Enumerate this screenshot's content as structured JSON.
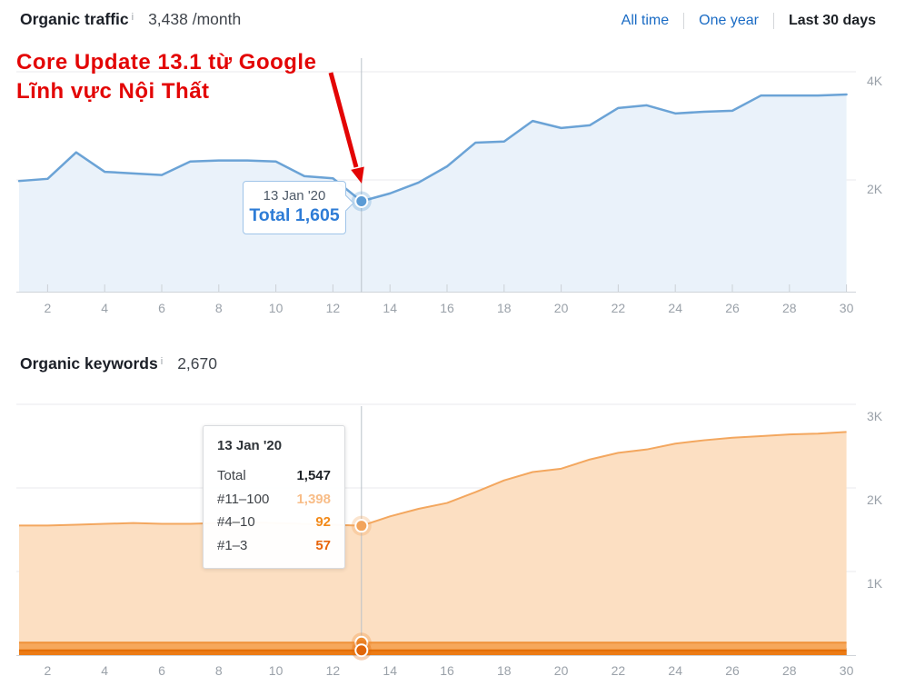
{
  "organic_traffic": {
    "title": "Organic traffic",
    "info_icon": "i",
    "value": "3,438 /month",
    "ranges": [
      {
        "label": "All time",
        "active": false
      },
      {
        "label": "One year",
        "active": false
      },
      {
        "label": "Last 30 days",
        "active": true
      }
    ],
    "tooltip": {
      "date": "13 Jan '20",
      "total_label": "Total",
      "total_value": "1,605"
    }
  },
  "annotation": {
    "line1": "Core Update 13.1 từ Google",
    "line2": "Lĩnh vực Nội Thất",
    "color": "#e30505"
  },
  "organic_keywords": {
    "title": "Organic keywords",
    "info_icon": "i",
    "value": "2,670",
    "tooltip": {
      "date": "13 Jan '20",
      "rows": [
        {
          "label": "Total",
          "value": "1,547"
        },
        {
          "label": "#11–100",
          "value": "1,398"
        },
        {
          "label": "#4–10",
          "value": "92"
        },
        {
          "label": "#1–3",
          "value": "57"
        }
      ]
    }
  },
  "colors": {
    "traffic_line": "#6ba3d6",
    "traffic_fill": "#eaf2fa",
    "traffic_marker": "#5b9bd5",
    "kw_11_100_fill": "#fcdfc2",
    "kw_11_100_line": "#f3a75f",
    "kw_4_10_fill": "#f6a85c",
    "kw_4_10_line": "#f09138",
    "kw_1_3_fill": "#ec7b14",
    "kw_1_3_line": "#e36d05",
    "link_blue": "#1a6bc4",
    "annotation_red": "#e30505",
    "tooltip_total_blue": "#2e7cd6"
  },
  "chart_data": [
    {
      "type": "line_area",
      "title": "Organic traffic — Last 30 days",
      "x": [
        1,
        2,
        3,
        4,
        5,
        6,
        7,
        8,
        9,
        10,
        11,
        12,
        13,
        14,
        15,
        16,
        17,
        18,
        19,
        20,
        21,
        22,
        23,
        24,
        25,
        26,
        27,
        28,
        29,
        30
      ],
      "series": [
        {
          "name": "Total organic traffic",
          "line_color": "#6ba3d6",
          "fill_color": "#eaf2fa",
          "values": [
            1980,
            2020,
            2510,
            2150,
            2120,
            2090,
            2340,
            2360,
            2360,
            2340,
            2070,
            2030,
            1605,
            1750,
            1950,
            2250,
            2690,
            2710,
            3090,
            2960,
            3010,
            3330,
            3380,
            3230,
            3260,
            3280,
            3560,
            3560,
            3560,
            3580
          ]
        }
      ],
      "ylim": [
        0,
        4400
      ],
      "yticks": [
        {
          "value": 2000,
          "label": "2K"
        },
        {
          "value": 4000,
          "label": "4K"
        }
      ],
      "xticks": [
        2,
        4,
        6,
        8,
        10,
        12,
        14,
        16,
        18,
        20,
        22,
        24,
        26,
        28,
        30
      ],
      "grid": true,
      "legend": "none",
      "highlight": {
        "day": 13,
        "date": "13 Jan '20",
        "total": 1605,
        "markers": [
          {
            "y": 1605,
            "color": "#5b9bd5"
          }
        ]
      }
    },
    {
      "type": "stacked_area",
      "title": "Organic keywords — Last 30 days",
      "x": [
        1,
        2,
        3,
        4,
        5,
        6,
        7,
        8,
        9,
        10,
        11,
        12,
        13,
        14,
        15,
        16,
        17,
        18,
        19,
        20,
        21,
        22,
        23,
        24,
        25,
        26,
        27,
        28,
        29,
        30
      ],
      "series": [
        {
          "name": "#1–3",
          "line_color": "#e36d05",
          "fill_color": "#ec7b14",
          "values": [
            57,
            57,
            57,
            57,
            57,
            57,
            57,
            57,
            57,
            57,
            57,
            57,
            57,
            57,
            57,
            57,
            57,
            57,
            57,
            57,
            57,
            57,
            57,
            57,
            57,
            57,
            57,
            57,
            57,
            57
          ]
        },
        {
          "name": "#4–10",
          "line_color": "#f09138",
          "fill_color": "#f6a85c",
          "values": [
            92,
            92,
            92,
            92,
            92,
            92,
            92,
            92,
            92,
            92,
            92,
            92,
            92,
            92,
            92,
            92,
            92,
            92,
            92,
            92,
            92,
            92,
            92,
            92,
            92,
            92,
            92,
            92,
            92,
            92
          ]
        },
        {
          "name": "#11–100",
          "line_color": "#f3a75f",
          "fill_color": "#fcdfc2",
          "values": [
            1401,
            1401,
            1411,
            1421,
            1431,
            1421,
            1421,
            1431,
            1441,
            1431,
            1421,
            1411,
            1398,
            1511,
            1601,
            1671,
            1801,
            1941,
            2041,
            2081,
            2191,
            2271,
            2311,
            2381,
            2421,
            2451,
            2471,
            2491,
            2501,
            2521
          ]
        }
      ],
      "totals": [
        1550,
        1550,
        1560,
        1570,
        1580,
        1570,
        1570,
        1580,
        1590,
        1580,
        1570,
        1560,
        1547,
        1660,
        1750,
        1820,
        1950,
        2090,
        2190,
        2230,
        2340,
        2420,
        2460,
        2530,
        2570,
        2600,
        2620,
        2640,
        2650,
        2670
      ],
      "ylim": [
        0,
        3000
      ],
      "yticks": [
        {
          "value": 1000,
          "label": "1K"
        },
        {
          "value": 2000,
          "label": "2K"
        },
        {
          "value": 3000,
          "label": "3K"
        }
      ],
      "xticks": [
        2,
        4,
        6,
        8,
        10,
        12,
        14,
        16,
        18,
        20,
        22,
        24,
        26,
        28,
        30
      ],
      "grid": true,
      "legend": "none",
      "highlight": {
        "day": 13,
        "date": "13 Jan '20",
        "total": 1547,
        "markers": [
          {
            "y": 1547,
            "color": "#f2a45c"
          },
          {
            "y": 149,
            "color": "#ee8c30"
          },
          {
            "y": 57,
            "color": "#e0660a"
          }
        ]
      }
    }
  ]
}
